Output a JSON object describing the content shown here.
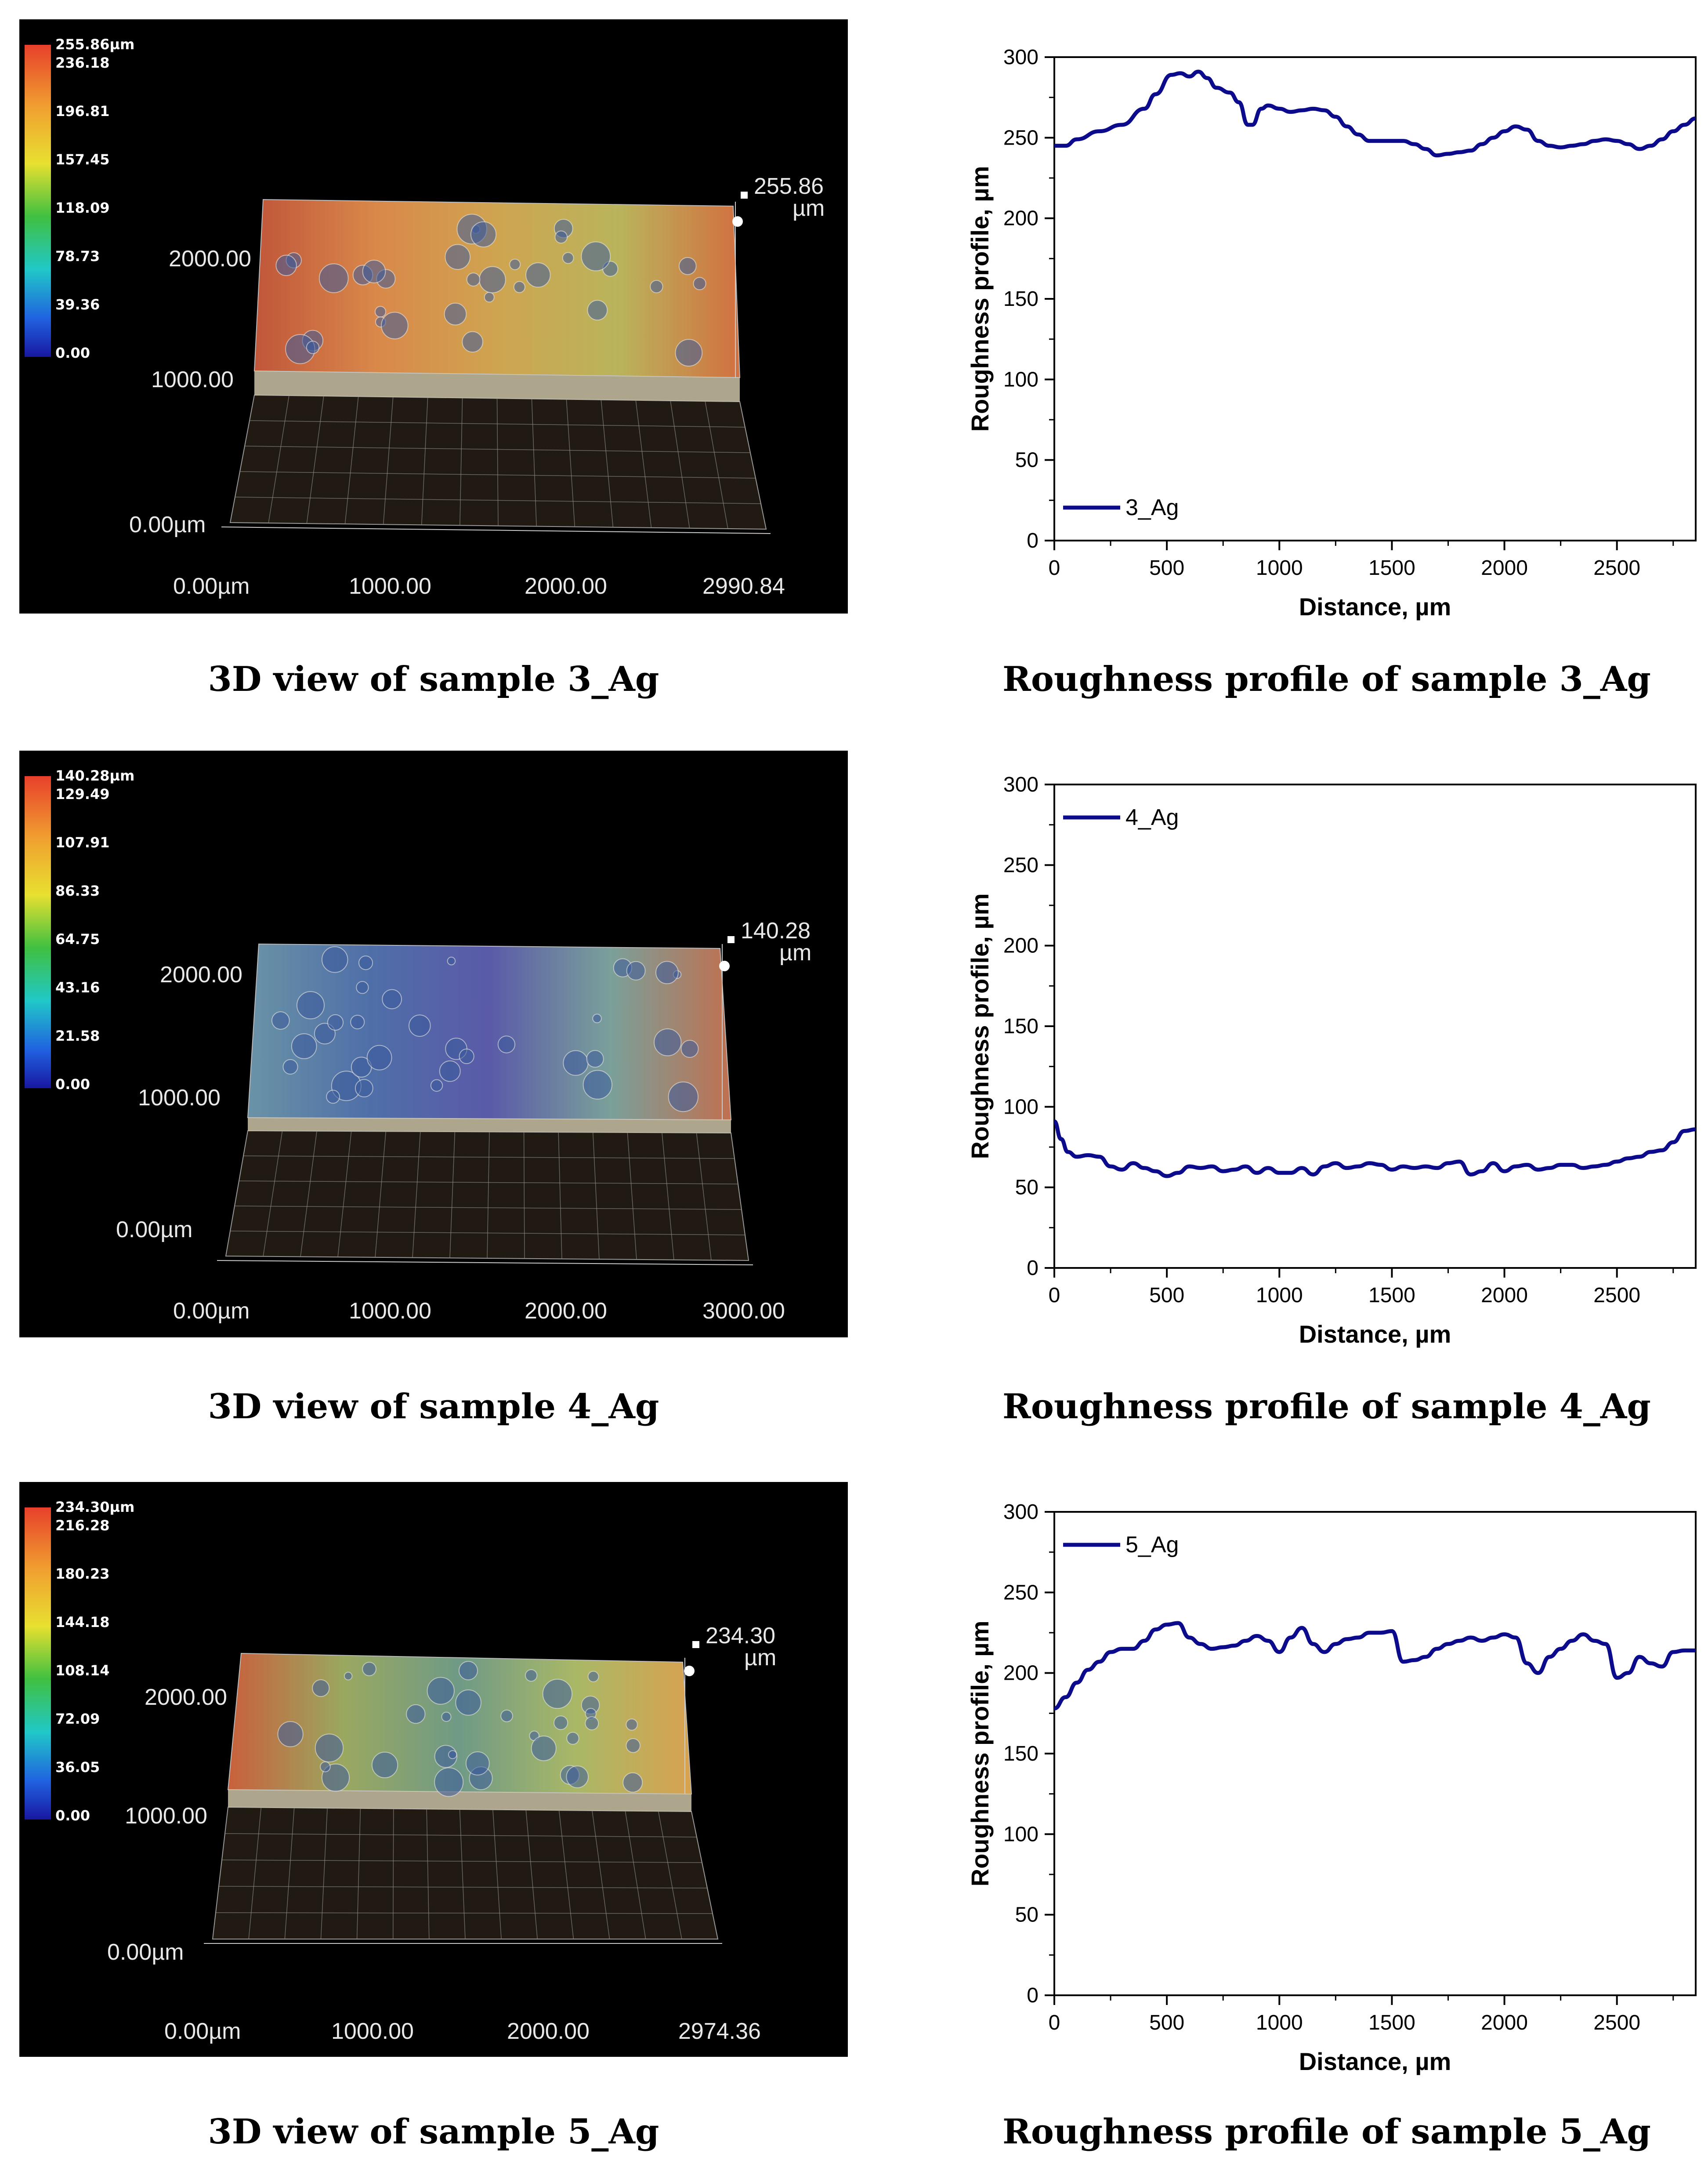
{
  "figure": {
    "rows": [
      {
        "view3d": {
          "caption": "3D view of sample 3_Ag",
          "scale_labels": [
            "255.86µm",
            "236.18",
            "196.81",
            "157.45",
            "118.09",
            "78.73",
            "39.36",
            "0.00"
          ],
          "y_labels": [
            "2000.00",
            "1000.00",
            "0.00µm"
          ],
          "x_labels": [
            "0.00µm",
            "1000.00",
            "2000.00",
            "2990.84"
          ],
          "z_label_value": "255.86",
          "z_label_unit": "µm",
          "surface_palette": [
            "#c0563a",
            "#d9884a",
            "#cfa450",
            "#b9b45c",
            "#d27040"
          ]
        },
        "profile": {
          "caption": "Roughness profile of sample 3_Ag"
        }
      },
      {
        "view3d": {
          "caption": "3D view of sample 4_Ag",
          "scale_labels": [
            "140.28µm",
            "129.49",
            "107.91",
            "86.33",
            "64.75",
            "43.16",
            "21.58",
            "0.00"
          ],
          "y_labels": [
            "2000.00",
            "1000.00",
            "0.00µm"
          ],
          "x_labels": [
            "0.00µm",
            "1000.00",
            "2000.00",
            "3000.00"
          ],
          "z_label_value": "140.28",
          "z_label_unit": "µm",
          "surface_palette": [
            "#6a93a6",
            "#4f6fa8",
            "#5a5aa8",
            "#7aa09a",
            "#c07050"
          ]
        },
        "profile": {
          "caption": "Roughness profile of sample 4_Ag"
        }
      },
      {
        "view3d": {
          "caption": "3D view of sample 5_Ag",
          "scale_labels": [
            "234.30µm",
            "216.28",
            "180.23",
            "144.18",
            "108.14",
            "72.09",
            "36.05",
            "0.00"
          ],
          "y_labels": [
            "2000.00",
            "1000.00",
            "0.00µm"
          ],
          "x_labels": [
            "0.00µm",
            "1000.00",
            "2000.00",
            "2974.36"
          ],
          "z_label_value": "234.30",
          "z_label_unit": "µm",
          "surface_palette": [
            "#c8603c",
            "#9aa860",
            "#6f9a86",
            "#a9b866",
            "#d8a250"
          ]
        },
        "profile": {
          "caption": "Roughness profile of sample 5_Ag"
        }
      }
    ]
  },
  "chart_data": [
    {
      "type": "line",
      "title": "",
      "xlabel": "Distance, µm",
      "ylabel": "Roughness profile, µm",
      "xlim": [
        0,
        2850
      ],
      "ylim": [
        0,
        300
      ],
      "x_ticks": [
        "0",
        "500",
        "1000",
        "1500",
        "2000",
        "2500"
      ],
      "y_ticks": [
        "0",
        "50",
        "100",
        "150",
        "200",
        "250",
        "300"
      ],
      "legend": "bottom-left",
      "line_color": "#0b0b8c",
      "series": [
        {
          "name": "3_Ag",
          "x": [
            0,
            50,
            100,
            200,
            300,
            400,
            450,
            520,
            560,
            600,
            640,
            680,
            720,
            780,
            820,
            860,
            880,
            920,
            950,
            1000,
            1050,
            1100,
            1150,
            1200,
            1250,
            1300,
            1350,
            1400,
            1450,
            1500,
            1550,
            1600,
            1650,
            1700,
            1750,
            1800,
            1850,
            1900,
            1950,
            2000,
            2050,
            2100,
            2150,
            2200,
            2250,
            2300,
            2350,
            2400,
            2450,
            2500,
            2550,
            2600,
            2650,
            2700,
            2750,
            2800,
            2850
          ],
          "values": [
            245,
            245,
            249,
            254,
            258,
            268,
            277,
            289,
            290,
            288,
            291,
            287,
            281,
            278,
            272,
            258,
            258,
            268,
            270,
            268,
            266,
            267,
            268,
            267,
            263,
            257,
            252,
            248,
            248,
            248,
            248,
            246,
            243,
            239,
            240,
            241,
            242,
            246,
            250,
            254,
            257,
            255,
            248,
            245,
            244,
            245,
            246,
            248,
            249,
            248,
            246,
            243,
            245,
            249,
            254,
            258,
            262
          ]
        }
      ]
    },
    {
      "type": "line",
      "title": "",
      "xlabel": "Distance, µm",
      "ylabel": "Roughness profile, µm",
      "xlim": [
        0,
        2850
      ],
      "ylim": [
        0,
        300
      ],
      "x_ticks": [
        "0",
        "500",
        "1000",
        "1500",
        "2000",
        "2500"
      ],
      "y_ticks": [
        "0",
        "50",
        "100",
        "150",
        "200",
        "250",
        "300"
      ],
      "legend": "top-left",
      "line_color": "#0b0b8c",
      "series": [
        {
          "name": "4_Ag",
          "x": [
            0,
            30,
            60,
            100,
            150,
            200,
            250,
            300,
            350,
            400,
            450,
            500,
            550,
            600,
            650,
            700,
            750,
            800,
            850,
            900,
            950,
            1000,
            1050,
            1100,
            1150,
            1200,
            1250,
            1300,
            1350,
            1400,
            1450,
            1500,
            1550,
            1600,
            1650,
            1700,
            1750,
            1800,
            1850,
            1900,
            1950,
            2000,
            2050,
            2100,
            2150,
            2200,
            2250,
            2300,
            2350,
            2400,
            2450,
            2500,
            2550,
            2600,
            2650,
            2700,
            2750,
            2800,
            2850
          ],
          "values": [
            91,
            80,
            72,
            69,
            70,
            69,
            63,
            61,
            65,
            62,
            60,
            57,
            59,
            63,
            62,
            63,
            60,
            61,
            63,
            59,
            62,
            59,
            59,
            62,
            58,
            63,
            65,
            62,
            63,
            65,
            64,
            61,
            63,
            62,
            63,
            62,
            65,
            66,
            58,
            60,
            65,
            60,
            63,
            64,
            61,
            62,
            64,
            64,
            62,
            63,
            64,
            66,
            68,
            69,
            72,
            73,
            78,
            85,
            86
          ]
        }
      ]
    },
    {
      "type": "line",
      "title": "",
      "xlabel": "Distance, µm",
      "ylabel": "Roughness profile, µm",
      "xlim": [
        0,
        2850
      ],
      "ylim": [
        0,
        300
      ],
      "x_ticks": [
        "0",
        "500",
        "1000",
        "1500",
        "2000",
        "2500"
      ],
      "y_ticks": [
        "0",
        "50",
        "100",
        "150",
        "200",
        "250",
        "300"
      ],
      "legend": "top-left",
      "line_color": "#0b0b8c",
      "series": [
        {
          "name": "5_Ag",
          "x": [
            0,
            50,
            100,
            150,
            200,
            250,
            300,
            350,
            400,
            450,
            500,
            550,
            600,
            650,
            700,
            750,
            800,
            850,
            900,
            950,
            1000,
            1050,
            1100,
            1150,
            1200,
            1250,
            1300,
            1350,
            1400,
            1450,
            1500,
            1550,
            1600,
            1650,
            1700,
            1750,
            1800,
            1850,
            1900,
            1950,
            2000,
            2050,
            2100,
            2150,
            2200,
            2250,
            2300,
            2350,
            2400,
            2450,
            2500,
            2550,
            2600,
            2650,
            2700,
            2750,
            2800,
            2850
          ],
          "values": [
            178,
            185,
            194,
            202,
            207,
            213,
            215,
            215,
            220,
            227,
            230,
            231,
            222,
            218,
            215,
            216,
            217,
            220,
            223,
            220,
            213,
            222,
            228,
            218,
            213,
            218,
            221,
            222,
            225,
            225,
            226,
            207,
            208,
            210,
            215,
            218,
            220,
            222,
            220,
            222,
            224,
            222,
            206,
            200,
            210,
            215,
            220,
            224,
            220,
            218,
            197,
            200,
            210,
            206,
            204,
            213,
            214,
            214
          ]
        }
      ]
    }
  ]
}
